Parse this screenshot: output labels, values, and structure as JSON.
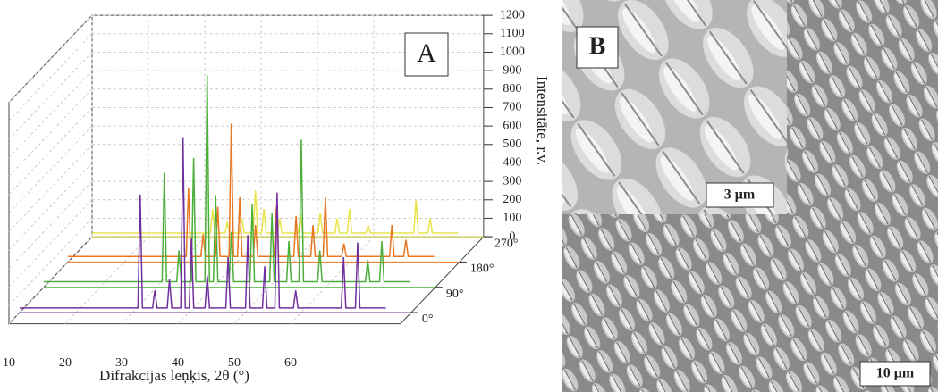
{
  "chart_data": {
    "type": "waterfall",
    "panel_label": "A",
    "y_label": "Intensitāte, r.v.",
    "x_label": "Difrakcijas leņķis, 2θ (°)",
    "xlim": [
      10,
      79.5
    ],
    "xticks": [
      10,
      20,
      30,
      40,
      50,
      60
    ],
    "ylim": [
      0,
      1200
    ],
    "yticks": [
      0,
      100,
      200,
      300,
      400,
      500,
      600,
      700,
      800,
      900,
      1000,
      1100,
      1200
    ],
    "zticks": [
      {
        "value": 0,
        "label": "0°"
      },
      {
        "value": 90,
        "label": "90°"
      },
      {
        "value": 180,
        "label": "180°"
      },
      {
        "value": 270,
        "label": "270°"
      }
    ],
    "grid": true,
    "x": [
      10,
      31,
      31.4,
      31.8,
      33.6,
      34,
      34.4,
      36.2,
      36.6,
      37,
      38.6,
      39,
      39.4,
      40.1,
      40.5,
      40.9,
      42.9,
      43.3,
      43.7,
      46.6,
      47,
      47.4,
      50.1,
      50.5,
      50.9,
      53.1,
      53.5,
      53.9,
      55.3,
      55.7,
      56.1,
      58.6,
      59,
      59.4,
      67.1,
      67.5,
      67.9,
      69.6,
      70,
      70.4,
      75
    ],
    "series": [
      {
        "color": "#7030a0",
        "values": [
          25,
          25,
          640,
          25,
          25,
          120,
          25,
          25,
          180,
          25,
          25,
          950,
          25,
          25,
          400,
          25,
          25,
          200,
          25,
          25,
          300,
          25,
          25,
          420,
          25,
          25,
          250,
          25,
          25,
          650,
          25,
          25,
          120,
          25,
          25,
          300,
          25,
          25,
          380,
          25,
          25
        ]
      },
      {
        "color": "#4caf3a",
        "values": [
          30,
          30,
          620,
          30,
          30,
          200,
          30,
          30,
          700,
          30,
          30,
          1150,
          30,
          30,
          500,
          30,
          30,
          300,
          30,
          30,
          450,
          30,
          30,
          400,
          30,
          30,
          250,
          30,
          30,
          800,
          30,
          30,
          200,
          30,
          30,
          150,
          30,
          30,
          250,
          30,
          30
        ]
      },
      {
        "color": "#e87722",
        "values": [
          30,
          30,
          400,
          30,
          30,
          150,
          30,
          30,
          300,
          30,
          30,
          750,
          30,
          30,
          350,
          30,
          30,
          200,
          30,
          30,
          300,
          30,
          30,
          250,
          30,
          30,
          200,
          30,
          30,
          350,
          30,
          30,
          100,
          30,
          30,
          200,
          30,
          30,
          120,
          30,
          30
        ]
      },
      {
        "color": "#e8e34a",
        "values": [
          20,
          20,
          150,
          20,
          20,
          80,
          20,
          20,
          100,
          20,
          20,
          250,
          20,
          20,
          150,
          20,
          20,
          100,
          20,
          20,
          120,
          20,
          20,
          130,
          20,
          20,
          100,
          20,
          20,
          150,
          20,
          20,
          60,
          20,
          20,
          200,
          20,
          20,
          100,
          20,
          20
        ]
      }
    ]
  },
  "image": {
    "panel_label": "B",
    "inset_scale": "3 μm",
    "scale": "10 μm"
  }
}
